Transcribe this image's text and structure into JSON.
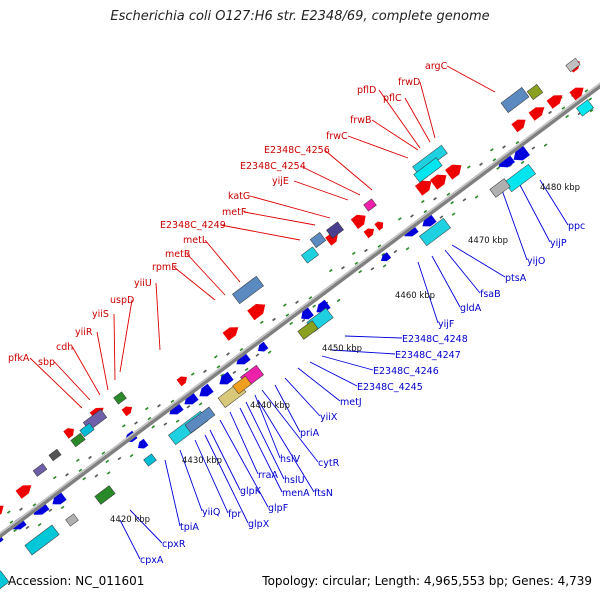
{
  "title": "Escherichia coli O127:H6 str. E2348/69, complete genome",
  "footer": {
    "accession_label": "Accession:",
    "accession": "NC_011601",
    "topology_label": "Topology:",
    "topology": "circular",
    "length_label": "Length:",
    "length": "4,965,553 bp",
    "genes_label": "Genes:",
    "genes": "4,739"
  },
  "colors": {
    "forward_strand": "#ee0000",
    "reverse_strand": "#0000dd",
    "backbone": "#808080"
  },
  "ticks": [
    "4420 kbp",
    "4430 kbp",
    "4440 kbp",
    "4450 kbp",
    "4460 kbp",
    "4470 kbp",
    "4480 kbp"
  ],
  "forward_genes": [
    "pfkA",
    "sbp",
    "cdh",
    "yiiR",
    "yiiS",
    "uspD",
    "yiiU",
    "rpmE",
    "metB",
    "metL",
    "E2348C_4249",
    "metF",
    "katG",
    "yijE",
    "E2348C_4254",
    "E2348C_4256",
    "frwC",
    "frwB",
    "pflD",
    "pflC",
    "frwD",
    "argC"
  ],
  "reverse_genes": [
    "cpxA",
    "cpxR",
    "tpiA",
    "yiiQ",
    "fpr",
    "glpX",
    "glpK",
    "glpF",
    "rraA",
    "menA",
    "hslU",
    "ftsN",
    "hslV",
    "cytR",
    "priA",
    "yiiX",
    "metJ",
    "E2348C_4245",
    "E2348C_4246",
    "E2348C_4247",
    "E2348C_4248",
    "yijF",
    "gldA",
    "fsaB",
    "ptsA",
    "yijO",
    "yijP",
    "ppc"
  ]
}
